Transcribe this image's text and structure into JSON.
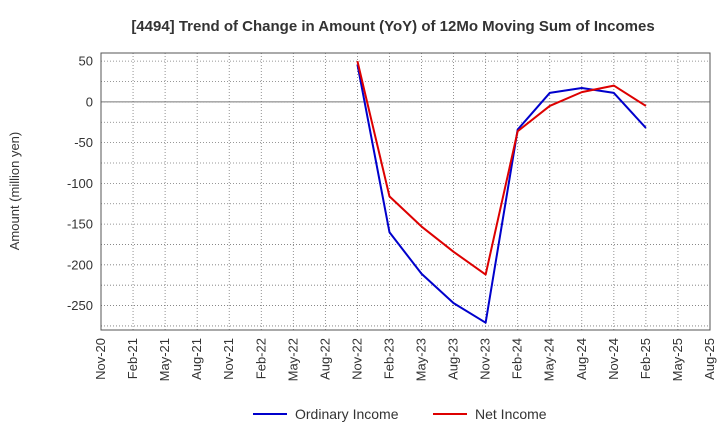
{
  "chart_data": {
    "type": "line",
    "title": "[4494]  Trend of Change in Amount (YoY) of 12Mo Moving Sum of Incomes",
    "xlabel": "",
    "ylabel": "Amount (million yen)",
    "ylim": [
      -280,
      60
    ],
    "yticks": [
      50,
      0,
      -50,
      -100,
      -150,
      -200,
      -250
    ],
    "categories": [
      "Nov-20",
      "Feb-21",
      "May-21",
      "Aug-21",
      "Nov-21",
      "Feb-22",
      "May-22",
      "Aug-22",
      "Nov-22",
      "Feb-23",
      "May-23",
      "Aug-23",
      "Nov-23",
      "Feb-24",
      "May-24",
      "Aug-24",
      "Nov-24",
      "Feb-25",
      "May-25",
      "Aug-25"
    ],
    "grid": true,
    "legend_position": "bottom",
    "series": [
      {
        "name": "Ordinary Income",
        "color": "#0000cc",
        "values": [
          null,
          null,
          null,
          null,
          null,
          null,
          null,
          null,
          46,
          -160,
          -211,
          -247,
          -271,
          -34,
          11,
          17,
          11,
          -32,
          null,
          null
        ]
      },
      {
        "name": "Net Income",
        "color": "#dd0000",
        "values": [
          null,
          null,
          null,
          null,
          null,
          null,
          null,
          null,
          50,
          -116,
          -153,
          -184,
          -212,
          -36,
          -5,
          12,
          20,
          -5,
          null,
          null
        ]
      }
    ]
  }
}
